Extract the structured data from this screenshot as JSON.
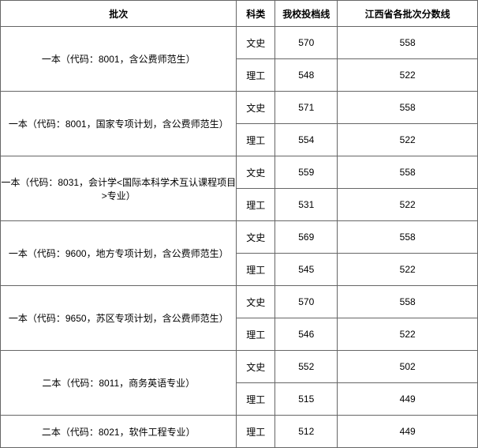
{
  "header": {
    "batch": "批次",
    "subject": "科类",
    "school_line": "我校投档线",
    "province_line": "江西省各批次分数线"
  },
  "batches": [
    {
      "name": "一本（代码：8001，含公费师范生）",
      "rowspan": 2,
      "rows": [
        {
          "subject": "文史",
          "school": "570",
          "province": "558"
        },
        {
          "subject": "理工",
          "school": "548",
          "province": "522"
        }
      ]
    },
    {
      "name": "一本（代码：8001，国家专项计划，含公费师范生）",
      "rowspan": 2,
      "rows": [
        {
          "subject": "文史",
          "school": "571",
          "province": "558"
        },
        {
          "subject": "理工",
          "school": "554",
          "province": "522"
        }
      ]
    },
    {
      "name": "一本（代码：8031，会计学<国际本科学术互认课程项目>专业）",
      "rowspan": 2,
      "rows": [
        {
          "subject": "文史",
          "school": "559",
          "province": "558"
        },
        {
          "subject": "理工",
          "school": "531",
          "province": "522"
        }
      ]
    },
    {
      "name": "一本（代码：9600，地方专项计划，含公费师范生）",
      "rowspan": 2,
      "rows": [
        {
          "subject": "文史",
          "school": "569",
          "province": "558"
        },
        {
          "subject": "理工",
          "school": "545",
          "province": "522"
        }
      ]
    },
    {
      "name": "一本（代码：9650，苏区专项计划，含公费师范生）",
      "rowspan": 2,
      "rows": [
        {
          "subject": "文史",
          "school": "570",
          "province": "558"
        },
        {
          "subject": "理工",
          "school": "546",
          "province": "522"
        }
      ]
    },
    {
      "name": "二本（代码：8011，商务英语专业）",
      "rowspan": 2,
      "rows": [
        {
          "subject": "文史",
          "school": "552",
          "province": "502"
        },
        {
          "subject": "理工",
          "school": "515",
          "province": "449"
        }
      ]
    },
    {
      "name": "二本（代码：8021，软件工程专业）",
      "rowspan": 1,
      "rows": [
        {
          "subject": "理工",
          "school": "512",
          "province": "449"
        }
      ]
    }
  ]
}
